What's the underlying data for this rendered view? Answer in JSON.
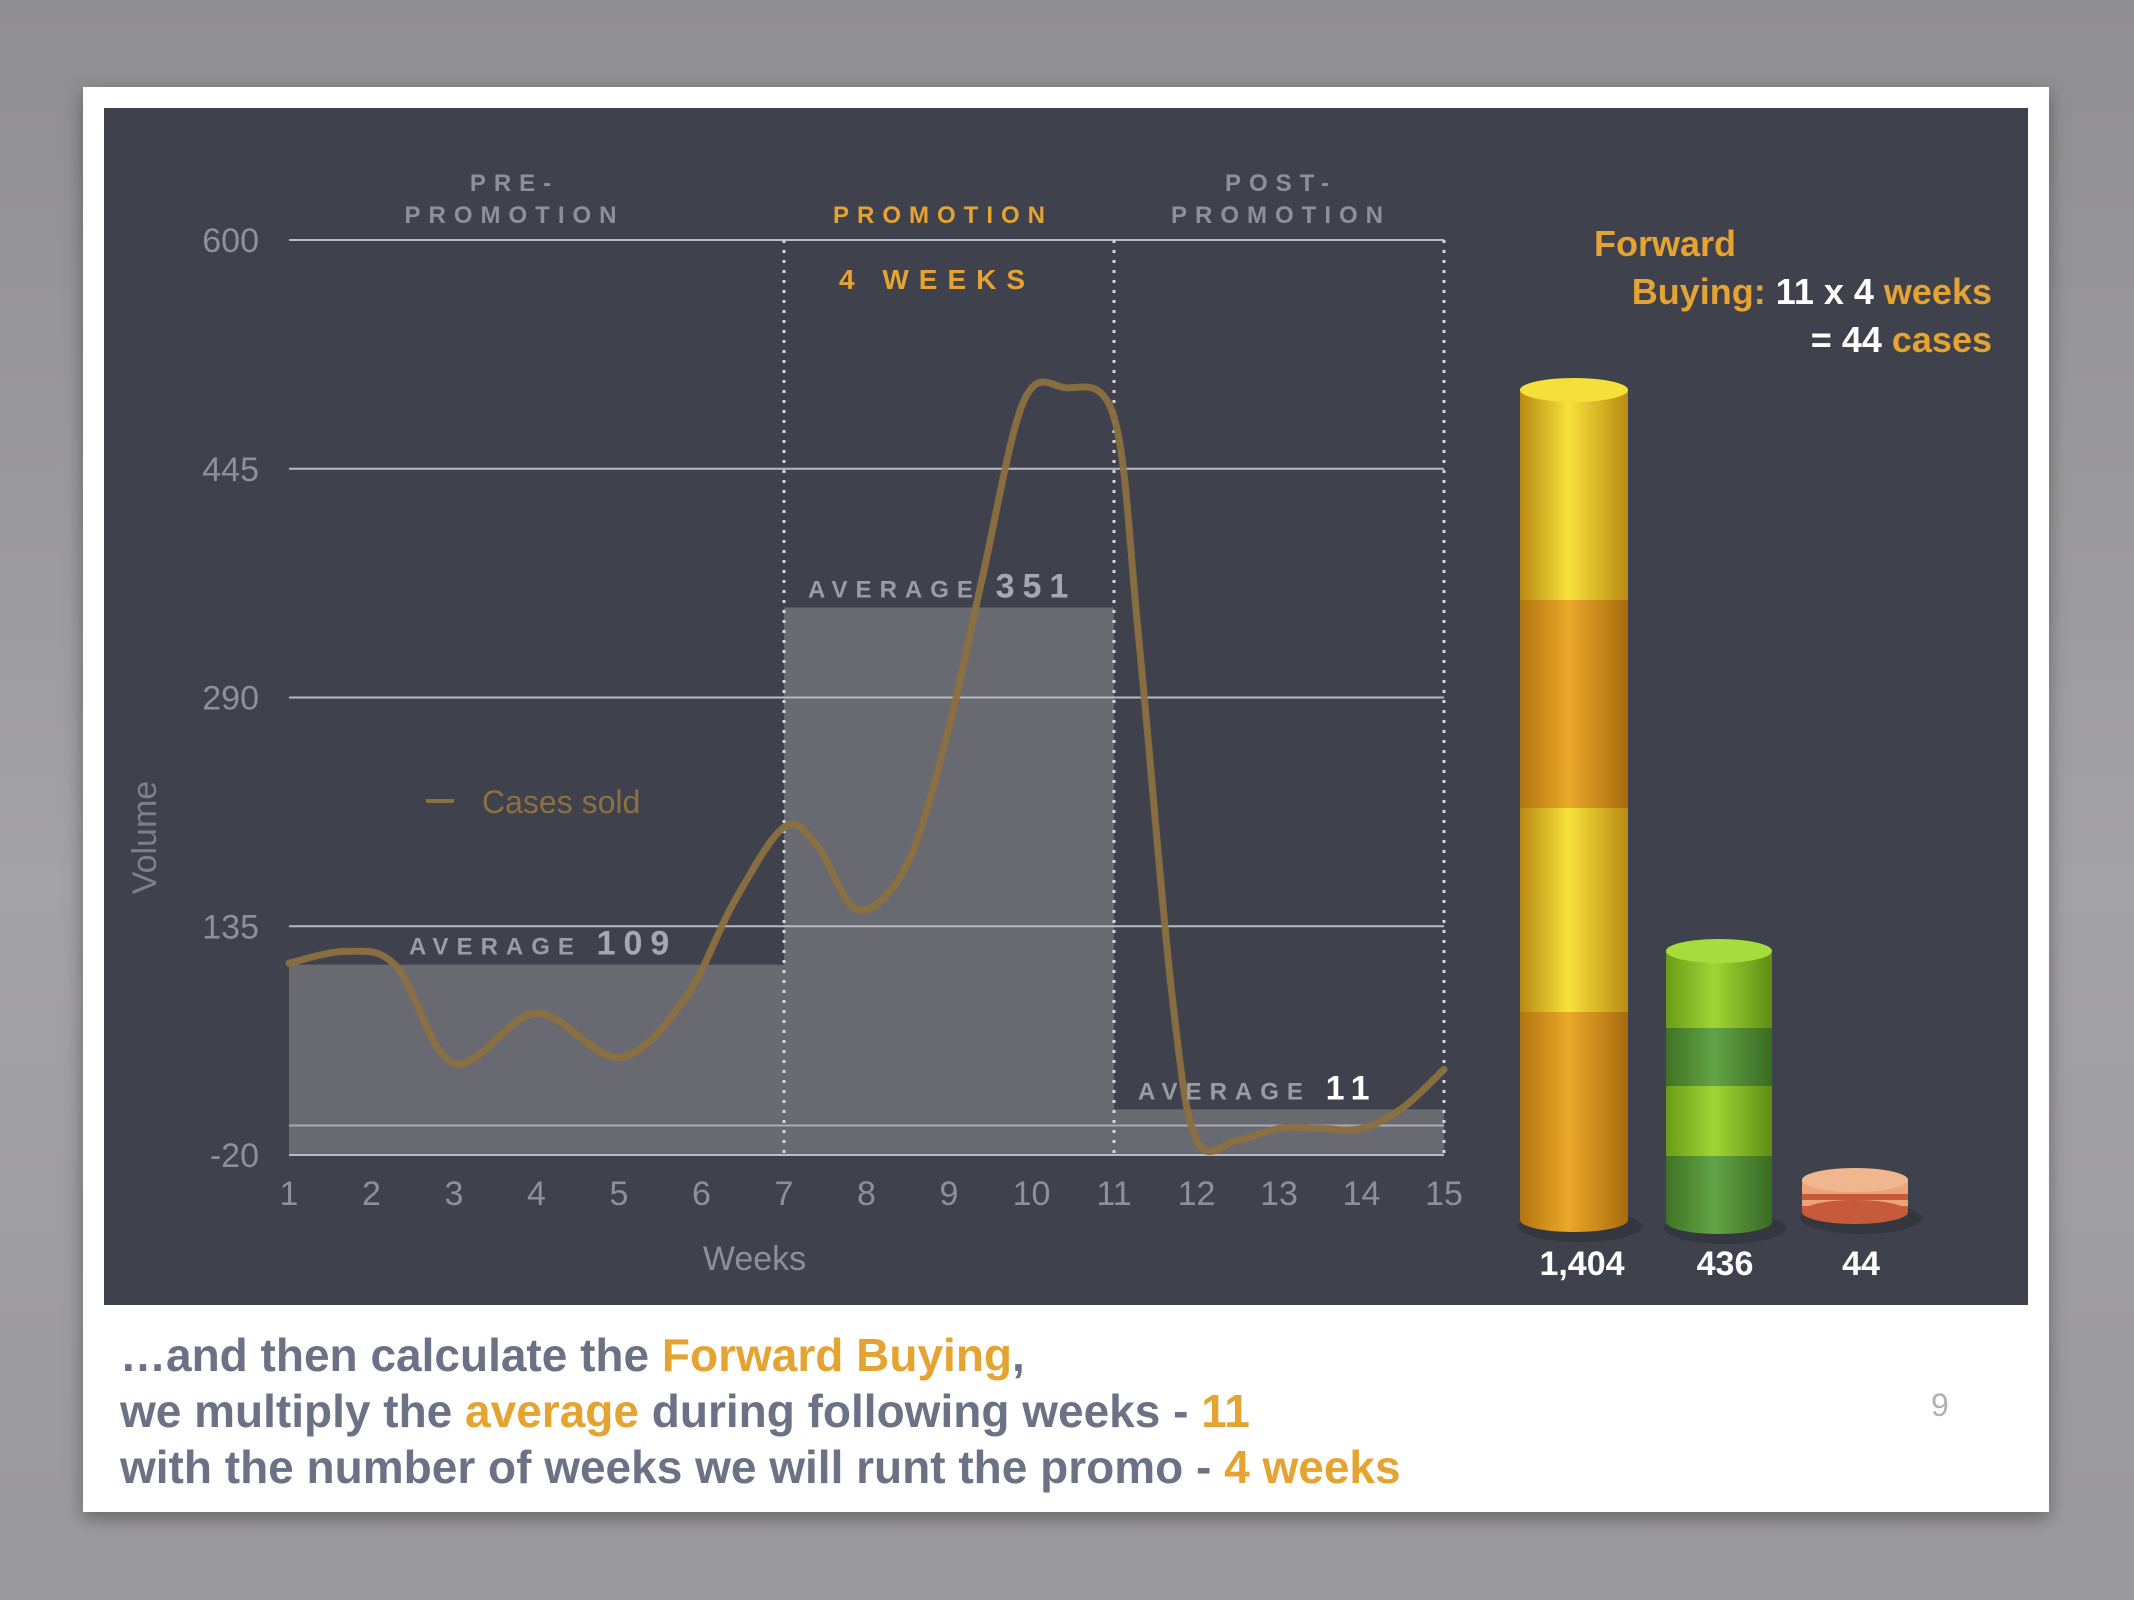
{
  "slide": {
    "page_number": "9",
    "caption": {
      "line1": {
        "t1": "…and then calculate the ",
        "t2": "Forward Buying",
        "t3": ","
      },
      "line2": {
        "t1": "we multiply the ",
        "t2": "average",
        "t3": " during following weeks - ",
        "t4": "11"
      },
      "line3": {
        "t1": "with the number of weeks we will runt the promo - ",
        "t2": "4 weeks"
      }
    },
    "forward_buying": {
      "line1": "Forward",
      "line2_label": "Buying:",
      "line2_calc": "11 x 4",
      "line2_unit": "weeks",
      "line3_eq": "= 44",
      "line3_unit": "cases"
    }
  },
  "colors": {
    "panel": "#3f424d",
    "accent": "#e5a331",
    "line": "#8c7040",
    "avg_bar": "#6b6d74",
    "caption_gray": "#6c7286"
  },
  "chart_data": [
    {
      "type": "line",
      "xlabel": "Weeks",
      "ylabel": "Volume",
      "x_ticks": [
        "1",
        "2",
        "3",
        "4",
        "5",
        "6",
        "7",
        "8",
        "9",
        "10",
        "11",
        "12",
        "13",
        "14",
        "15"
      ],
      "y_ticks": [
        "-20",
        "135",
        "290",
        "445",
        "600"
      ],
      "ylim": [
        -20,
        600
      ],
      "xlim": [
        1,
        15
      ],
      "grid": "horizontal",
      "legend": "Cases sold",
      "series": [
        {
          "name": "Cases sold",
          "x": [
            1,
            1.7,
            2.3,
            3,
            4,
            5,
            5.8,
            6.4,
            7,
            7.4,
            7.9,
            8.5,
            9,
            9.4,
            9.9,
            10.4,
            11,
            11.3,
            11.7,
            12,
            12.5,
            13,
            13.5,
            14,
            14.5,
            15
          ],
          "values": [
            110,
            118,
            108,
            42,
            76,
            46,
            86,
            152,
            202,
            190,
            146,
            178,
            270,
            370,
            490,
            500,
            480,
            330,
            90,
            -10,
            -10,
            -2,
            -2,
            -2,
            12,
            38
          ]
        }
      ],
      "phases": [
        {
          "label_line1": "PRE-",
          "label_line2": "PROMOTION",
          "x_range": [
            1,
            7
          ],
          "average_label": "AVERAGE",
          "average": "109",
          "average_value": 109
        },
        {
          "label_line1": "",
          "label_line2": "PROMOTION",
          "x_range": [
            7,
            11
          ],
          "sub_label": "4 WEEKS",
          "average_label": "AVERAGE",
          "average": "351",
          "average_value": 351
        },
        {
          "label_line1": "POST-",
          "label_line2": "PROMOTION",
          "x_range": [
            11,
            15
          ],
          "average_label": "AVERAGE",
          "average": "11",
          "average_value": 11
        }
      ]
    },
    {
      "type": "bar",
      "categories": [
        "1,404",
        "436",
        "44"
      ],
      "values": [
        1404,
        436,
        44
      ],
      "colors": [
        "#e0a52a",
        "#7cbf2e",
        "#e9a47a"
      ]
    }
  ]
}
